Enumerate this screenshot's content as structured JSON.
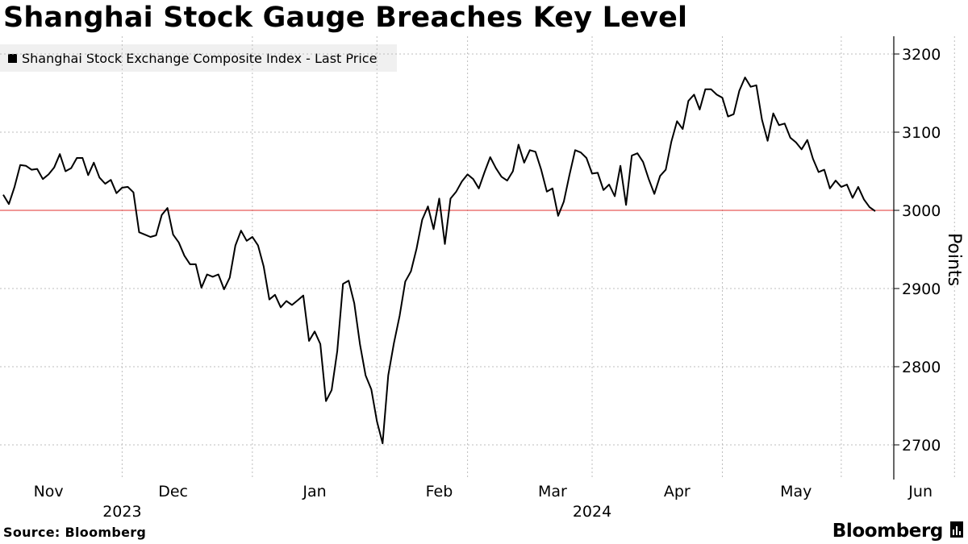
{
  "chart_data": {
    "type": "line",
    "title": "Shanghai Stock Gauge Breaches Key Level",
    "legend_label": "Shanghai Stock Exchange Composite Index - Last Price",
    "legend_placement": "top-left",
    "ylabel": "Points",
    "ylim": [
      2660,
      3210
    ],
    "yticks": [
      2700,
      2800,
      2900,
      3000,
      3100,
      3200
    ],
    "grid": true,
    "y_axis_side": "right",
    "reference_line": {
      "value": 3000,
      "color": "#e0302f"
    },
    "series_color": "#000000",
    "month_ticks": [
      {
        "label": "Nov",
        "index": 8
      },
      {
        "label": "Dec",
        "index": 30
      },
      {
        "label": "Jan",
        "index": 55
      },
      {
        "label": "Feb",
        "index": 77
      },
      {
        "label": "Mar",
        "index": 97
      },
      {
        "label": "Apr",
        "index": 119
      },
      {
        "label": "May",
        "index": 140
      },
      {
        "label": "Jun",
        "index": 162
      }
    ],
    "month_gridlines": [
      {
        "index": 21
      },
      {
        "index": 44
      },
      {
        "index": 66
      },
      {
        "index": 82
      },
      {
        "index": 104
      },
      {
        "index": 127
      },
      {
        "index": 148
      },
      {
        "index": 168
      }
    ],
    "year_labels": [
      {
        "label": "2023",
        "index": 21
      },
      {
        "label": "2024",
        "index": 104
      }
    ],
    "values": [
      3020,
      3008,
      3030,
      3058,
      3057,
      3052,
      3053,
      3040,
      3046,
      3055,
      3072,
      3050,
      3054,
      3067,
      3067,
      3045,
      3061,
      3042,
      3034,
      3039,
      3022,
      3029,
      3030,
      3023,
      2972,
      2969,
      2966,
      2968,
      2994,
      3003,
      2969,
      2959,
      2942,
      2931,
      2931,
      2901,
      2918,
      2915,
      2918,
      2899,
      2914,
      2955,
      2974,
      2961,
      2966,
      2955,
      2928,
      2886,
      2892,
      2876,
      2884,
      2879,
      2885,
      2891,
      2833,
      2845,
      2829,
      2756,
      2770,
      2820,
      2906,
      2910,
      2881,
      2829,
      2789,
      2771,
      2730,
      2702,
      2789,
      2830,
      2865,
      2909,
      2922,
      2951,
      2988,
      3005,
      2976,
      3015,
      2957,
      3015,
      3024,
      3037,
      3046,
      3040,
      3028,
      3049,
      3068,
      3054,
      3043,
      3038,
      3050,
      3084,
      3061,
      3077,
      3075,
      3052,
      3024,
      3028,
      2993,
      3011,
      3045,
      3077,
      3074,
      3067,
      3047,
      3048,
      3026,
      3033,
      3018,
      3057,
      3007,
      3070,
      3073,
      3062,
      3040,
      3021,
      3044,
      3052,
      3088,
      3114,
      3104,
      3140,
      3148,
      3129,
      3155,
      3155,
      3148,
      3144,
      3120,
      3123,
      3153,
      3170,
      3158,
      3160,
      3116,
      3089,
      3124,
      3109,
      3111,
      3093,
      3087,
      3078,
      3090,
      3066,
      3049,
      3052,
      3028,
      3038,
      3030,
      3033,
      3016,
      3030,
      3014,
      3004,
      2999
    ]
  },
  "source": "Source: Bloomberg",
  "brand": {
    "name": "Bloomberg",
    "icon": "bloomberg-chart-icon"
  }
}
